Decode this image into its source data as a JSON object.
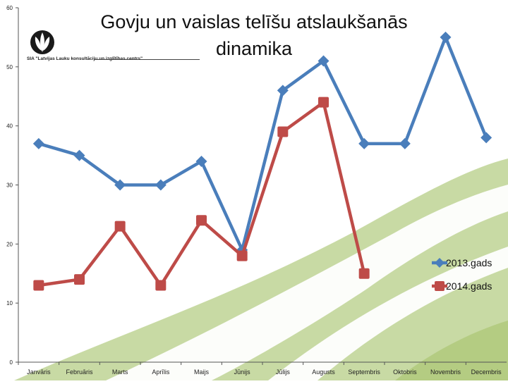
{
  "title": "Govju un vaislas telīšu atslaukšanās dinamika",
  "logo": {
    "text": "SIA \"Latvijas Lauku konsultāciju un izglītības centrs\""
  },
  "colors": {
    "series_2013": "#4a7ebb",
    "series_2014": "#be4b48",
    "background_green": "#9bbb59"
  },
  "chart_data": {
    "type": "line",
    "categories": [
      "Janvāris",
      "Februāris",
      "Marts",
      "Aprīlis",
      "Maijs",
      "Jūnijs",
      "Jūlijs",
      "Augusts",
      "Septembris",
      "Oktobris",
      "Novembris",
      "Decembris"
    ],
    "ylim": [
      0,
      60
    ],
    "yticks": [
      0,
      10,
      20,
      30,
      40,
      50,
      60
    ],
    "grid": false,
    "legend": "right",
    "series": [
      {
        "name": "2013.gads",
        "color": "#4a7ebb",
        "marker": "diamond",
        "values": [
          37,
          35,
          30,
          30,
          34,
          19,
          46,
          51,
          37,
          37,
          55,
          38
        ]
      },
      {
        "name": "2014.gads",
        "color": "#be4b48",
        "marker": "square",
        "values": [
          13,
          14,
          23,
          13,
          24,
          18,
          39,
          44,
          15,
          null,
          null,
          null
        ]
      }
    ]
  }
}
